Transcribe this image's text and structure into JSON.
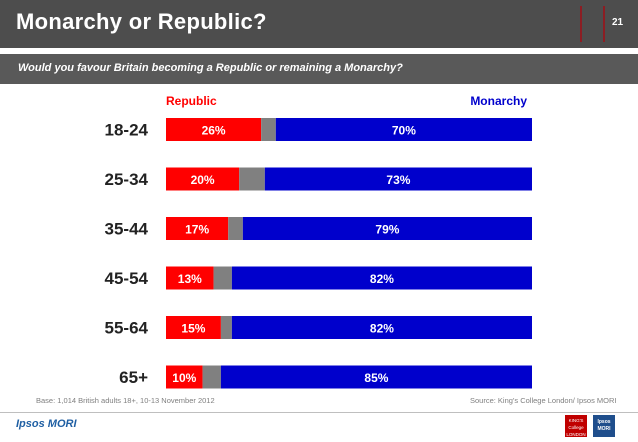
{
  "header": {
    "title": "Monarchy or Republic?",
    "page_number": "21"
  },
  "subtitle": "Would you favour Britain becoming a Republic or remaining a Monarchy?",
  "footer": {
    "base": "Base: 1,014 British adults 18+, 10-13 November 2012",
    "source": "Source: King's College London/ Ipsos MORI",
    "brand": "Ipsos MORI",
    "kcl_logo_text": "KING'S College LONDON",
    "ipsos_logo_text": "Ipsos MORI"
  },
  "colors": {
    "republic": "#ff0000",
    "monarchy": "#0000cc",
    "dont_know": "#808080",
    "header_bg": "#4d4d4d",
    "subtitle_bg": "#595959"
  },
  "chart_data": {
    "type": "bar",
    "orientation": "horizontal",
    "stacked": true,
    "categories": [
      "18-24",
      "25-34",
      "35-44",
      "45-54",
      "55-64",
      "65+"
    ],
    "series": [
      {
        "name": "Republic",
        "values": [
          26,
          20,
          17,
          13,
          15,
          10
        ],
        "labels": [
          "26%",
          "20%",
          "17%",
          "13%",
          "15%",
          "10%"
        ]
      },
      {
        "name": "",
        "values": [
          4,
          7,
          4,
          5,
          3,
          5
        ],
        "labels": [
          "",
          "",
          "",
          "",
          "",
          ""
        ]
      },
      {
        "name": "Monarchy",
        "values": [
          70,
          73,
          79,
          82,
          82,
          85
        ],
        "labels": [
          "70%",
          "73%",
          "79%",
          "82%",
          "82%",
          "85%"
        ]
      }
    ],
    "xlim": [
      0,
      100
    ],
    "legend": "top"
  }
}
